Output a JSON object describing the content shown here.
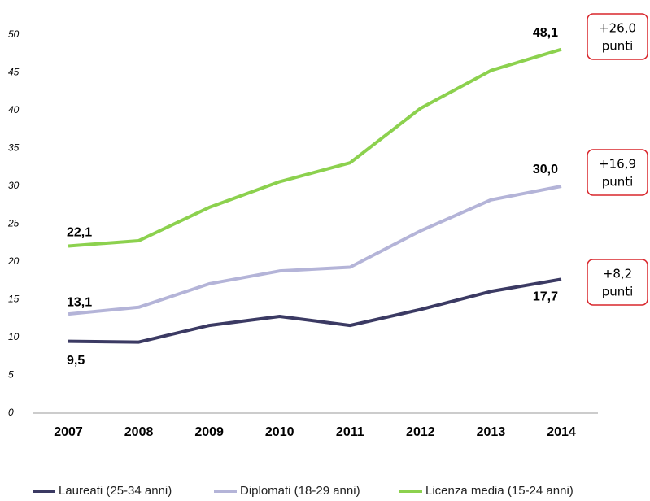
{
  "chart_data": {
    "type": "line",
    "categories": [
      "2007",
      "2008",
      "2009",
      "2010",
      "2011",
      "2012",
      "2013",
      "2014"
    ],
    "series": [
      {
        "name": "Laureati (25-34 anni)",
        "color": "#3b3a63",
        "values": [
          9.5,
          9.4,
          11.6,
          12.8,
          11.6,
          13.7,
          16.1,
          17.7
        ],
        "value_labels": [
          "9,5",
          null,
          null,
          null,
          null,
          null,
          null,
          "17,7"
        ]
      },
      {
        "name": "Diplomati (18-29 anni)",
        "color": "#b4b4d8",
        "values": [
          13.1,
          14.0,
          17.1,
          18.8,
          19.3,
          24.1,
          28.2,
          30.0
        ],
        "value_labels": [
          "13,1",
          null,
          null,
          null,
          null,
          null,
          null,
          "30,0"
        ]
      },
      {
        "name": "Licenza media (15-24 anni)",
        "color": "#8cd14e",
        "values": [
          22.1,
          22.8,
          27.2,
          30.6,
          33.1,
          40.3,
          45.3,
          48.1
        ],
        "value_labels": [
          "22,1",
          null,
          null,
          null,
          null,
          null,
          null,
          "48,1"
        ]
      }
    ],
    "ylim": [
      0,
      50
    ],
    "yticks": [
      0,
      5,
      10,
      15,
      20,
      25,
      30,
      35,
      40,
      45,
      50
    ],
    "annotations": [
      [
        "+26,0",
        "punti"
      ],
      [
        "+16,9",
        "punti"
      ],
      [
        "+8,2",
        "punti"
      ]
    ],
    "annotation_color": "#d9262c",
    "legend": "bottom"
  }
}
